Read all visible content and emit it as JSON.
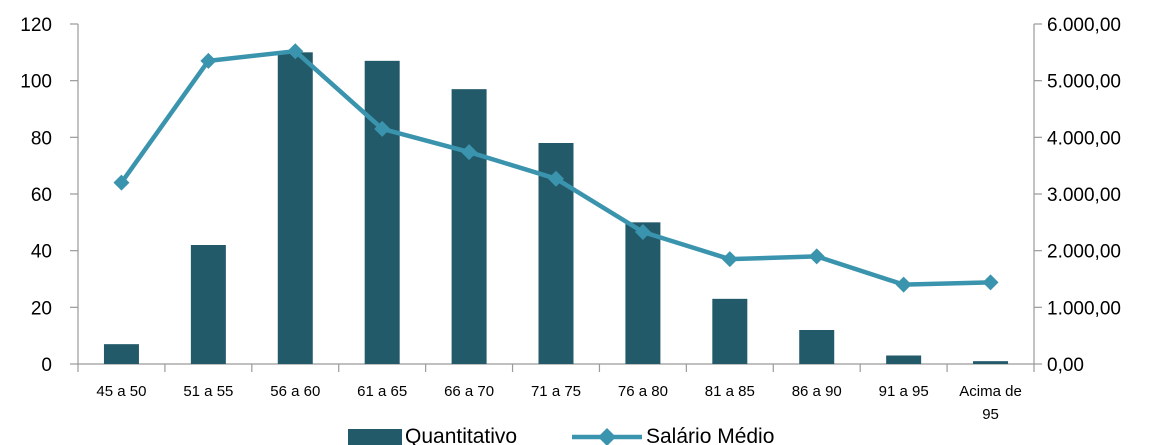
{
  "chart_data": {
    "type": "bar",
    "categories": [
      "45 a 50",
      "51 a 55",
      "56 a 60",
      "61 a 65",
      "66 a 70",
      "71 a 75",
      "76 a 80",
      "81 a 85",
      "86 a 90",
      "91 a 95",
      "Acima de 95"
    ],
    "series": [
      {
        "name": "Quantitativo",
        "type": "bar",
        "axis": "left",
        "color": "#225a6a",
        "values": [
          7,
          42,
          110,
          107,
          97,
          78,
          50,
          23,
          12,
          3,
          1
        ]
      },
      {
        "name": "Salário Médio",
        "type": "line",
        "axis": "right",
        "color": "#3b94ae",
        "values": [
          3200,
          5350,
          5520,
          4150,
          3740,
          3270,
          2330,
          1850,
          1900,
          1400,
          1440
        ]
      }
    ],
    "y_left": {
      "min": 0,
      "max": 120,
      "ticks": [
        "0",
        "20",
        "40",
        "60",
        "80",
        "100",
        "120"
      ]
    },
    "y_right": {
      "min": 0,
      "max": 6000,
      "ticks": [
        "0,00",
        "1.000,00",
        "2.000,00",
        "3.000,00",
        "4.000,00",
        "5.000,00",
        "6.000,00"
      ]
    },
    "legend": {
      "placement": "bottom"
    },
    "grid": false
  }
}
